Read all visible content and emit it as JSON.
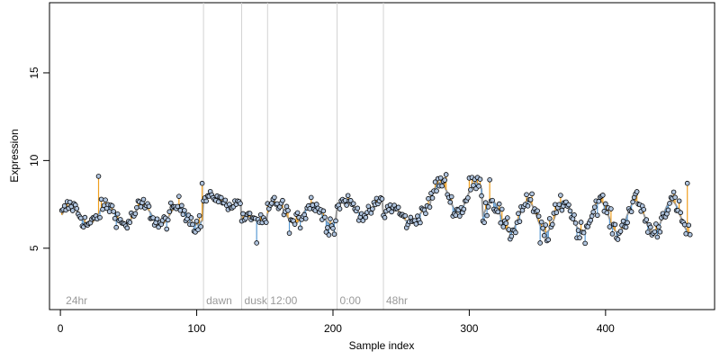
{
  "chart_data": {
    "type": "scatter",
    "xlabel": "Sample index",
    "ylabel": "Expression",
    "xlim": [
      -8,
      480
    ],
    "ylim": [
      1.5,
      19
    ],
    "x_ticks": [
      0,
      100,
      200,
      300,
      400
    ],
    "y_ticks": [
      5,
      10,
      15
    ],
    "grid": false,
    "baseline_color": "#9a9a9a",
    "above_color": "#f0a020",
    "below_color": "#5b9bd5",
    "point_fill": "#b0c4de",
    "point_stroke": "#000000",
    "section_line_color": "#d3d3d3",
    "sections": [
      {
        "x": 2,
        "label": "24hr",
        "boundary": false
      },
      {
        "x": 105,
        "label": "dawn",
        "boundary": true
      },
      {
        "x": 133,
        "label": "dusk",
        "boundary": true
      },
      {
        "x": 152,
        "label": "12:00",
        "boundary": true
      },
      {
        "x": 203,
        "label": "0:00",
        "boundary": true
      },
      {
        "x": 237,
        "label": "48hr",
        "boundary": true
      }
    ],
    "segments": [
      {
        "x0": 1,
        "x1": 105,
        "mean": 6.9,
        "amp": 0.55,
        "stdev": 0.45
      },
      {
        "x0": 105,
        "x1": 133,
        "mean": 7.7,
        "amp": 0.25,
        "stdev": 0.25
      },
      {
        "x0": 133,
        "x1": 152,
        "mean": 6.6,
        "amp": 0.2,
        "stdev": 0.3
      },
      {
        "x0": 152,
        "x1": 203,
        "mean": 7.0,
        "amp": 0.6,
        "stdev": 0.55
      },
      {
        "x0": 203,
        "x1": 237,
        "mean": 7.3,
        "amp": 0.45,
        "stdev": 0.3
      },
      {
        "x0": 237,
        "x1": 272,
        "mean": 6.9,
        "amp": 0.45,
        "stdev": 0.4
      },
      {
        "x0": 272,
        "x1": 310,
        "mean": 7.9,
        "amp": 0.85,
        "stdev": 0.45
      },
      {
        "x0": 310,
        "x1": 462,
        "mean": 6.8,
        "amp": 0.9,
        "stdev": 0.55
      }
    ],
    "highlights": [
      {
        "x": 28,
        "y": 9.1
      },
      {
        "x": 104,
        "y": 8.7
      },
      {
        "x": 283,
        "y": 9.2
      },
      {
        "x": 300,
        "y": 9.0
      },
      {
        "x": 315,
        "y": 8.9
      },
      {
        "x": 460,
        "y": 8.7
      },
      {
        "x": 144,
        "y": 5.3
      },
      {
        "x": 201,
        "y": 5.8
      },
      {
        "x": 352,
        "y": 5.3
      }
    ]
  }
}
